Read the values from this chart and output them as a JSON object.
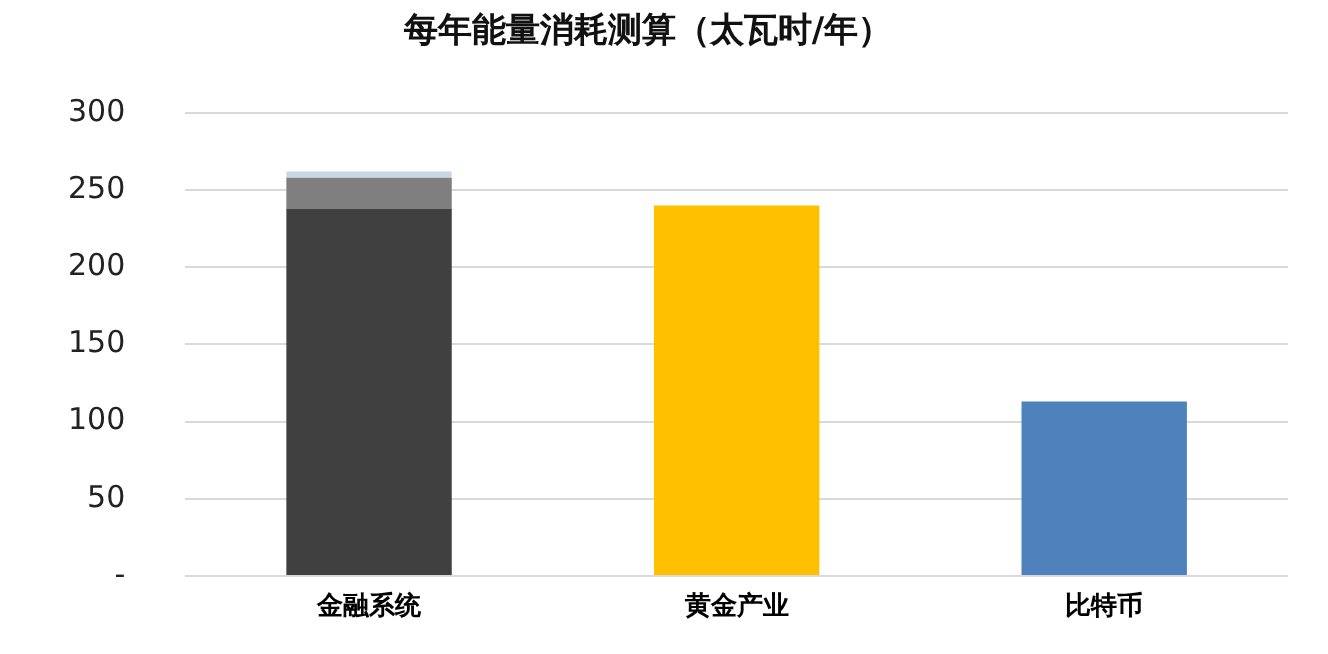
{
  "chart_data": {
    "type": "bar",
    "title": "每年能量消耗测算（太瓦时/年）",
    "categories": [
      "金融系统",
      "黄金产业",
      "比特币"
    ],
    "stacked": true,
    "series": [
      {
        "colors": [
          "#404040",
          "#ffc000",
          "#4f81bd"
        ],
        "values": [
          238,
          240,
          113
        ]
      },
      {
        "color": "#7f7f7f",
        "values": [
          20,
          null,
          null
        ]
      },
      {
        "color": "#c9d9e3",
        "values": [
          4,
          null,
          null
        ]
      }
    ],
    "ylim": [
      0,
      300
    ],
    "yticks": [
      {
        "value": 0,
        "label": "-"
      },
      50,
      100,
      150,
      200,
      250,
      300
    ],
    "grid": "y",
    "legend": false
  }
}
